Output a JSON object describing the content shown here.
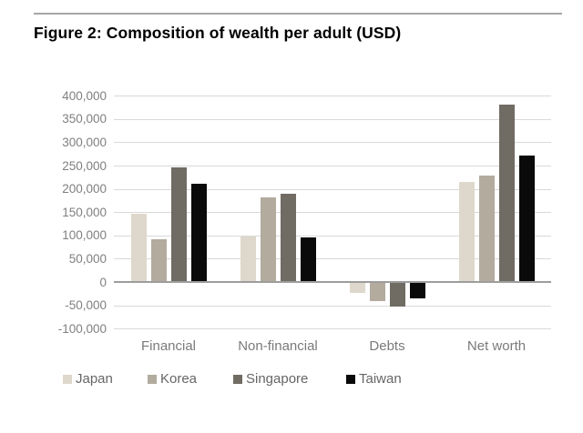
{
  "figure": {
    "title": "Figure 2: Composition of wealth per adult (USD)"
  },
  "chart_data": {
    "type": "bar",
    "title": "Figure 2: Composition of wealth per adult (USD)",
    "categories": [
      "Financial",
      "Non-financial",
      "Debts",
      "Net worth"
    ],
    "series": [
      {
        "name": "Japan",
        "color": "#ddd8cb",
        "values": [
          146000,
          97000,
          -24000,
          215000
        ]
      },
      {
        "name": "Korea",
        "color": "#b2ab9e",
        "values": [
          91000,
          181000,
          -41000,
          229000
        ]
      },
      {
        "name": "Singapore",
        "color": "#706b63",
        "values": [
          246000,
          189000,
          -53000,
          381000
        ]
      },
      {
        "name": "Taiwan",
        "color": "#0a0a0a",
        "values": [
          212000,
          95000,
          -35000,
          272000
        ]
      }
    ],
    "xlabel": "",
    "ylabel": "",
    "ylim": [
      -100000,
      400000
    ],
    "ytick_step": 50000,
    "ytick_labels": [
      "400,000",
      "350,000",
      "300,000",
      "250,000",
      "200,000",
      "150,000",
      "100,000",
      "50,000",
      "0",
      "-50,000",
      "-100,000"
    ],
    "grid": true,
    "legend_position": "bottom",
    "legend_labels": [
      "Japan",
      "Korea",
      "Singapore",
      "Taiwan"
    ]
  },
  "style_colors": {
    "gridline": "#d9d9d9",
    "zero_line": "#9d9d9d",
    "axis_text": "#7f7f7f",
    "legend_text": "#666666",
    "top_rule": "#a6a6a6",
    "background": "#ffffff"
  }
}
